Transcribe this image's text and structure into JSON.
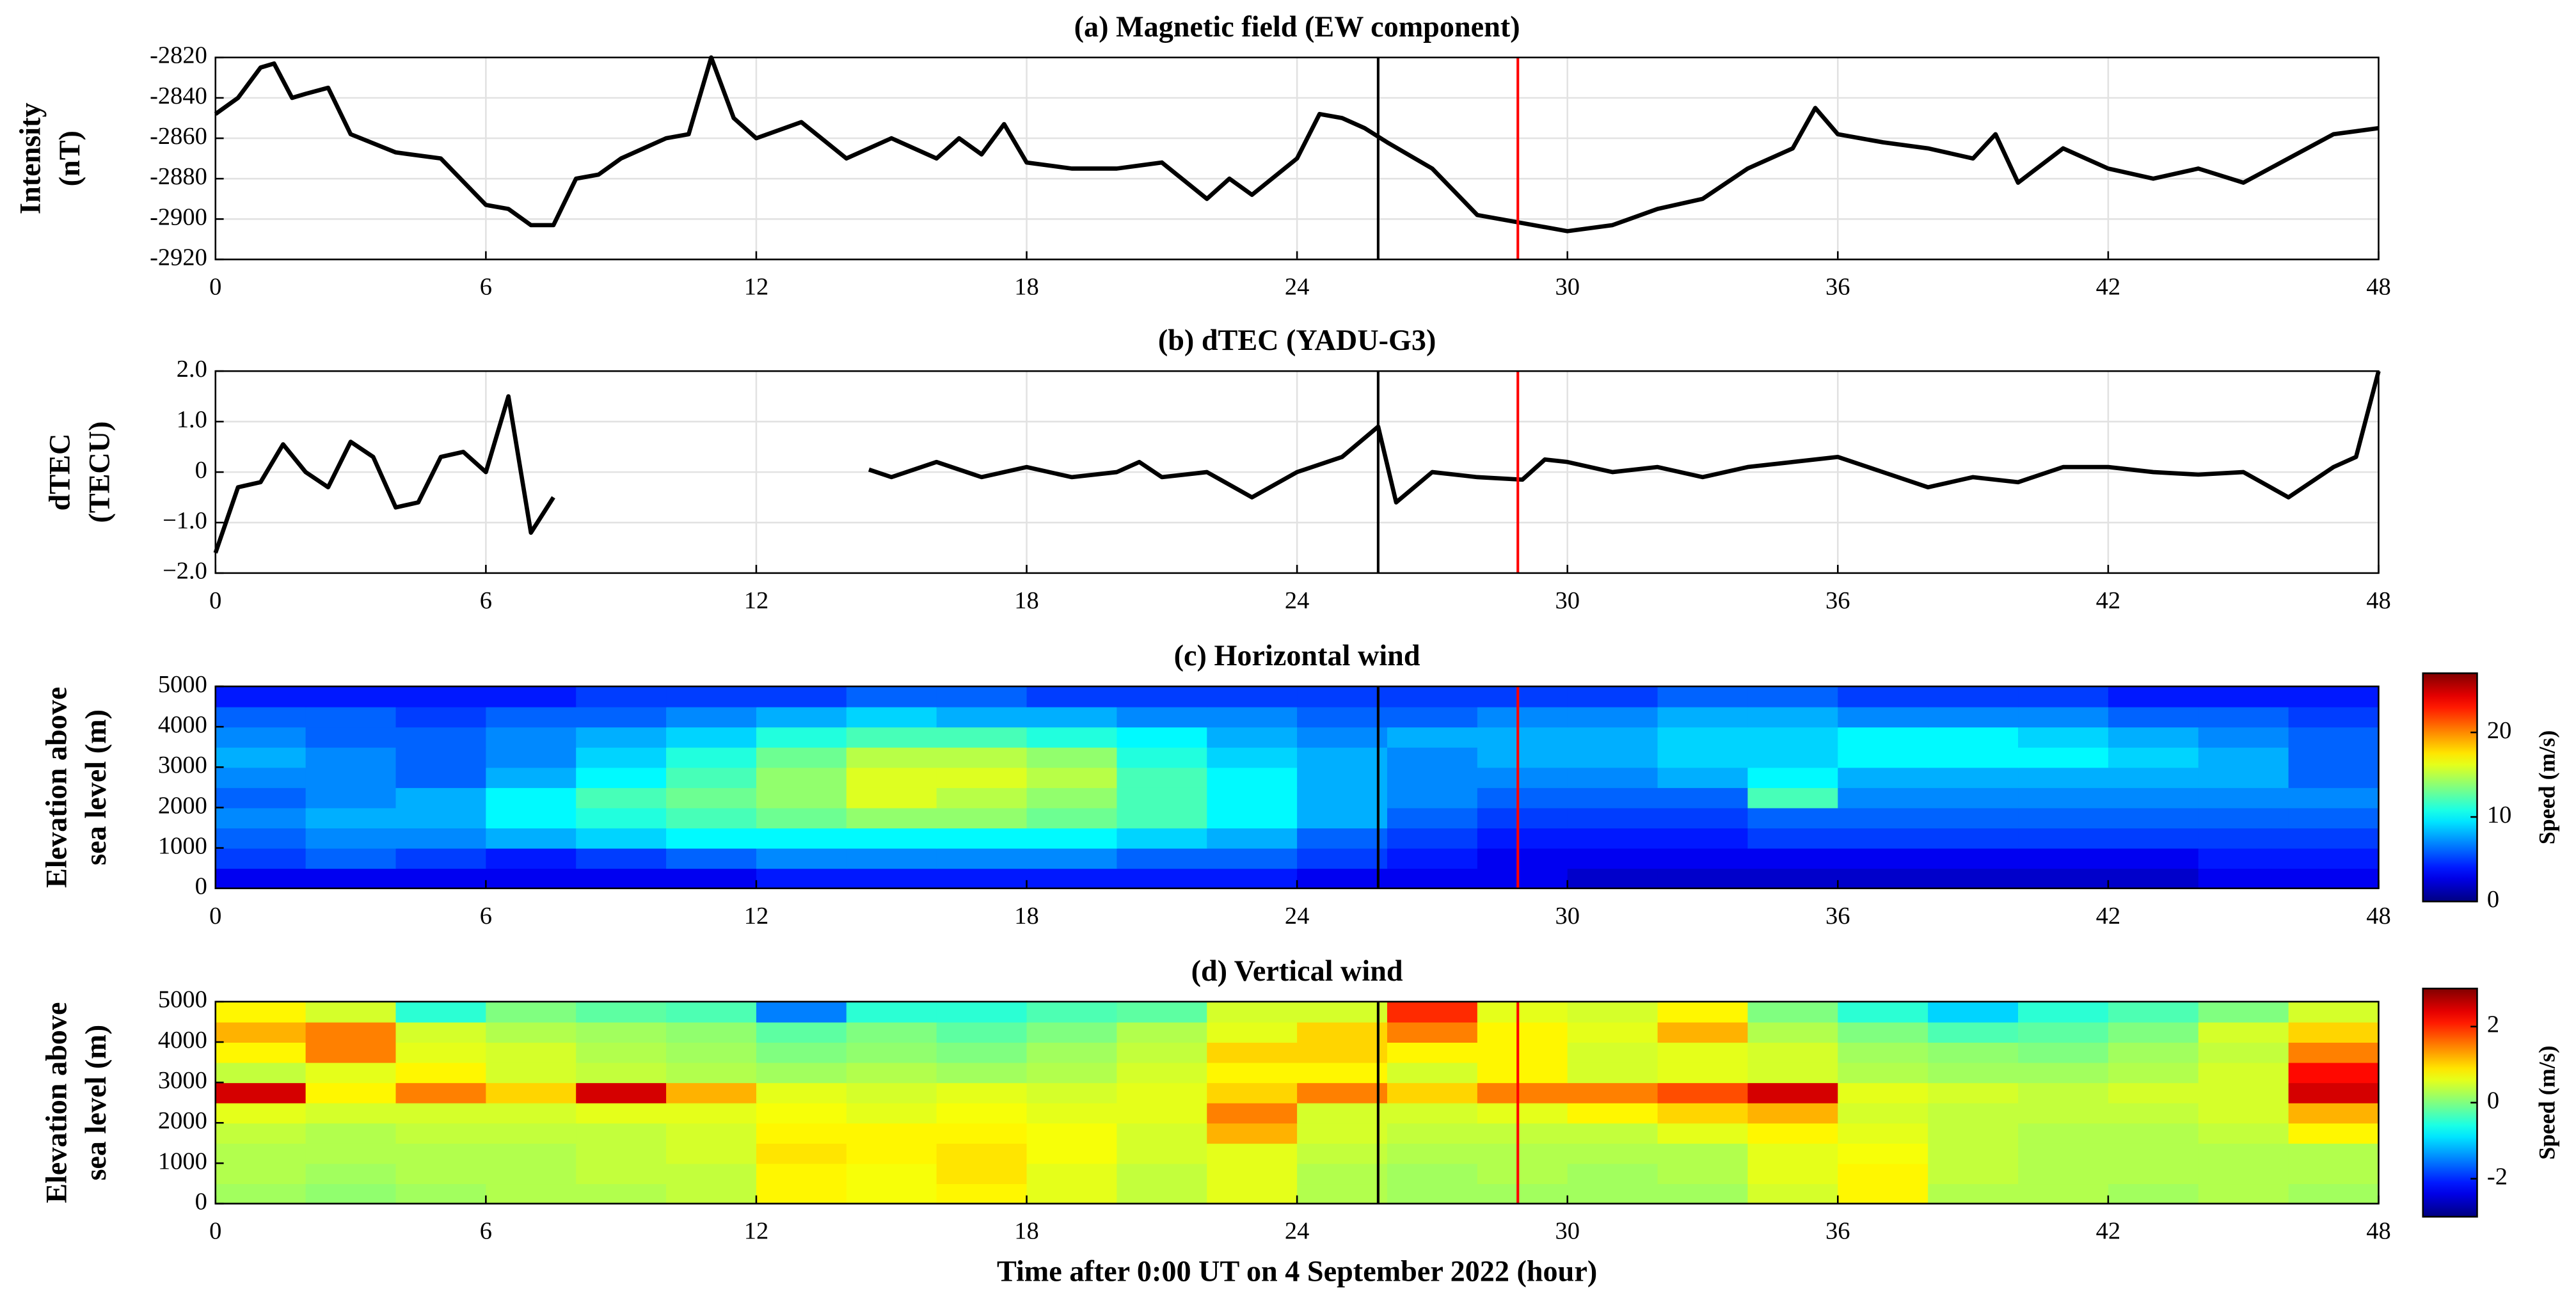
{
  "chart_data": [
    {
      "type": "line",
      "title": "(a) Magnetic field (EW component)",
      "ylabel": [
        "Intensity",
        "(nT)"
      ],
      "xlim": [
        0,
        48
      ],
      "xticks": [
        0,
        6,
        12,
        18,
        24,
        30,
        36,
        42,
        48
      ],
      "ylim": [
        -2920,
        -2820
      ],
      "yticks": [
        -2920,
        -2900,
        -2880,
        -2860,
        -2840,
        -2820
      ],
      "grid": true,
      "x": [
        0,
        0.5,
        1,
        1.3,
        1.7,
        2,
        2.5,
        3,
        4,
        5,
        6,
        6.5,
        7,
        7.5,
        8,
        8.5,
        9,
        10,
        10.5,
        11,
        11.5,
        12,
        13,
        14,
        15,
        16,
        16.5,
        17,
        17.5,
        18,
        19,
        20,
        21,
        22,
        22.5,
        23,
        24,
        24.5,
        25,
        25.5,
        26,
        27,
        28,
        29,
        30,
        31,
        32,
        33,
        34,
        35,
        35.5,
        36,
        37,
        38,
        39,
        39.5,
        40,
        41,
        42,
        43,
        44,
        45,
        46,
        47,
        48
      ],
      "series": [
        {
          "color": "#000000",
          "values": [
            -2848,
            -2840,
            -2825,
            -2823,
            -2840,
            -2838,
            -2835,
            -2858,
            -2867,
            -2870,
            -2893,
            -2895,
            -2903,
            -2903,
            -2880,
            -2878,
            -2870,
            -2860,
            -2858,
            -2820,
            -2850,
            -2860,
            -2852,
            -2870,
            -2860,
            -2870,
            -2860,
            -2868,
            -2853,
            -2872,
            -2875,
            -2875,
            -2872,
            -2890,
            -2880,
            -2888,
            -2870,
            -2848,
            -2850,
            -2855,
            -2862,
            -2875,
            -2898,
            -2902,
            -2906,
            -2903,
            -2895,
            -2890,
            -2875,
            -2865,
            -2845,
            -2858,
            -2862,
            -2865,
            -2870,
            -2858,
            -2882,
            -2865,
            -2875,
            -2880,
            -2875,
            -2882,
            -2870,
            -2858,
            -2855
          ]
        }
      ],
      "vlines": [
        {
          "x": 25.8,
          "color": "#000000"
        },
        {
          "x": 28.9,
          "color": "#ff0000"
        }
      ]
    },
    {
      "type": "line",
      "title": "(b) dTEC (YADU-G3)",
      "ylabel": [
        "dTEC",
        "(TECU)"
      ],
      "xlim": [
        0,
        48
      ],
      "xticks": [
        0,
        6,
        12,
        18,
        24,
        30,
        36,
        42,
        48
      ],
      "ylim": [
        -2,
        2
      ],
      "yticks": [
        {
          "value": -2,
          "label": "−2.0"
        },
        {
          "value": -1,
          "label": "−1.0"
        },
        0,
        {
          "value": 1,
          "label": "1.0"
        },
        {
          "value": 2,
          "label": "2.0"
        }
      ],
      "grid": true,
      "x": [
        0,
        0.5,
        1,
        1.5,
        2,
        2.5,
        3,
        3.5,
        4,
        4.5,
        5,
        5.5,
        6,
        6.5,
        7,
        7.5,
        10,
        14.5,
        15,
        16,
        17,
        18,
        19,
        20,
        20.5,
        21,
        22,
        23,
        24,
        25,
        25.8,
        26.2,
        27,
        28,
        29,
        29.5,
        30,
        31,
        32,
        33,
        34,
        35,
        36,
        37,
        38,
        39,
        40,
        41,
        42,
        43,
        44,
        45,
        46,
        47,
        47.5,
        48
      ],
      "series": [
        {
          "color": "#000000",
          "values": [
            -1.6,
            -0.3,
            -0.2,
            0.55,
            0.0,
            -0.3,
            0.6,
            0.3,
            -0.7,
            -0.6,
            0.3,
            0.4,
            0.0,
            1.5,
            -1.2,
            -0.5,
            null,
            0.05,
            -0.1,
            0.2,
            -0.1,
            0.1,
            -0.1,
            0.0,
            0.2,
            -0.1,
            0.0,
            -0.5,
            0.0,
            0.3,
            0.9,
            -0.6,
            0.0,
            -0.1,
            -0.15,
            0.25,
            0.2,
            0.0,
            0.1,
            -0.1,
            0.1,
            0.2,
            0.3,
            0.0,
            -0.3,
            -0.1,
            -0.2,
            0.1,
            0.1,
            0.0,
            -0.05,
            0.0,
            -0.5,
            0.1,
            0.3,
            2.0
          ]
        }
      ],
      "vlines": [
        {
          "x": 25.8,
          "color": "#000000"
        },
        {
          "x": 28.9,
          "color": "#ff0000"
        }
      ]
    },
    {
      "type": "heatmap",
      "title": "(c) Horizontal wind",
      "ylabel": [
        "Elevation above",
        "sea level (m)"
      ],
      "xlim": [
        0,
        48
      ],
      "xticks": [
        0,
        6,
        12,
        18,
        24,
        30,
        36,
        42,
        48
      ],
      "ylim": [
        0,
        5000
      ],
      "yticks": [
        0,
        1000,
        2000,
        3000,
        4000,
        5000
      ],
      "grid": false,
      "colormap": "jet",
      "colorbar": {
        "label": "Speed (m/s)",
        "clim": [
          0,
          27
        ],
        "ticks": [
          0,
          10,
          20
        ]
      },
      "xbins": [
        0,
        2,
        4,
        6,
        8,
        10,
        12,
        14,
        16,
        18,
        20,
        22,
        24,
        26,
        28,
        30,
        32,
        34,
        36,
        38,
        40,
        42,
        44,
        46,
        48
      ],
      "ybins": [
        0,
        500,
        1000,
        1500,
        2000,
        2500,
        3000,
        3500,
        4000,
        4500,
        5000
      ],
      "z": [
        [
          3,
          3,
          3,
          3,
          3,
          3,
          4,
          4,
          4,
          4,
          4,
          4,
          3,
          3,
          3,
          2,
          2,
          2,
          2,
          2,
          2,
          2,
          3,
          3
        ],
        [
          5,
          6,
          5,
          4,
          5,
          6,
          7,
          7,
          7,
          7,
          6,
          6,
          5,
          4,
          3,
          3,
          3,
          3,
          3,
          3,
          3,
          3,
          4,
          4
        ],
        [
          6,
          7,
          7,
          8,
          9,
          10,
          10,
          10,
          10,
          10,
          9,
          8,
          6,
          5,
          4,
          4,
          4,
          5,
          5,
          5,
          5,
          5,
          5,
          5
        ],
        [
          7,
          8,
          8,
          10,
          11,
          12,
          13,
          14,
          14,
          13,
          12,
          10,
          8,
          6,
          5,
          5,
          5,
          6,
          6,
          6,
          6,
          6,
          6,
          6
        ],
        [
          6,
          7,
          8,
          10,
          12,
          13,
          14,
          16,
          15,
          14,
          12,
          10,
          8,
          7,
          6,
          6,
          6,
          12,
          7,
          7,
          7,
          7,
          7,
          7
        ],
        [
          7,
          7,
          6,
          8,
          10,
          12,
          14,
          16,
          16,
          15,
          12,
          10,
          8,
          7,
          7,
          7,
          8,
          10,
          8,
          8,
          8,
          8,
          8,
          6
        ],
        [
          8,
          7,
          6,
          7,
          9,
          11,
          13,
          15,
          15,
          14,
          11,
          9,
          8,
          7,
          8,
          8,
          9,
          9,
          10,
          10,
          10,
          9,
          8,
          6
        ],
        [
          7,
          6,
          6,
          7,
          8,
          9,
          11,
          12,
          12,
          11,
          10,
          8,
          7,
          8,
          8,
          8,
          9,
          9,
          10,
          10,
          9,
          8,
          7,
          6
        ],
        [
          6,
          6,
          5,
          6,
          6,
          7,
          8,
          9,
          8,
          8,
          7,
          7,
          6,
          6,
          7,
          7,
          8,
          8,
          7,
          7,
          7,
          6,
          6,
          5
        ],
        [
          4,
          4,
          4,
          4,
          5,
          5,
          5,
          6,
          6,
          5,
          5,
          5,
          5,
          5,
          5,
          5,
          6,
          6,
          5,
          5,
          5,
          4,
          4,
          4
        ]
      ],
      "vlines": [
        {
          "x": 25.8,
          "color": "#000000"
        },
        {
          "x": 28.9,
          "color": "#ff0000"
        }
      ]
    },
    {
      "type": "heatmap",
      "title": "(d) Vertical wind",
      "ylabel": [
        "Elevation above",
        "sea level (m)"
      ],
      "xlabel": "Time after 0:00 UT on 4 September 2022 (hour)",
      "xlim": [
        0,
        48
      ],
      "xticks": [
        0,
        6,
        12,
        18,
        24,
        30,
        36,
        42,
        48
      ],
      "ylim": [
        0,
        5000
      ],
      "yticks": [
        0,
        1000,
        2000,
        3000,
        4000,
        5000
      ],
      "grid": false,
      "colormap": "jet",
      "colorbar": {
        "label": "Speed (m/s)",
        "clim": [
          -3,
          3
        ],
        "ticks": [
          -2,
          0,
          2
        ]
      },
      "xbins": [
        0,
        2,
        4,
        6,
        8,
        10,
        12,
        14,
        16,
        18,
        20,
        22,
        24,
        26,
        28,
        30,
        32,
        34,
        36,
        38,
        40,
        42,
        44,
        46,
        48
      ],
      "ybins": [
        0,
        500,
        1000,
        1500,
        2000,
        2500,
        3000,
        3500,
        4000,
        4500,
        5000
      ],
      "z": [
        [
          0.2,
          0.1,
          0.2,
          0.3,
          0.3,
          0.4,
          0.8,
          0.7,
          0.8,
          0.6,
          0.4,
          0.6,
          0.3,
          0.2,
          0.2,
          0.2,
          0.2,
          0.5,
          0.8,
          0.3,
          0.3,
          0.2,
          0.3,
          0.2
        ],
        [
          0.3,
          0.2,
          0.3,
          0.3,
          0.4,
          0.4,
          0.8,
          0.7,
          0.9,
          0.6,
          0.4,
          0.6,
          0.3,
          0.2,
          0.3,
          0.2,
          0.3,
          0.6,
          0.8,
          0.4,
          0.3,
          0.3,
          0.3,
          0.3
        ],
        [
          0.3,
          0.3,
          0.3,
          0.3,
          0.4,
          0.5,
          0.9,
          0.8,
          0.9,
          0.7,
          0.5,
          0.6,
          0.4,
          0.3,
          0.3,
          0.3,
          0.3,
          0.6,
          0.7,
          0.4,
          0.3,
          0.3,
          0.3,
          0.3
        ],
        [
          0.4,
          0.3,
          0.4,
          0.4,
          0.4,
          0.5,
          0.8,
          0.8,
          0.8,
          0.7,
          0.5,
          1.2,
          0.5,
          0.4,
          0.4,
          0.4,
          0.6,
          0.8,
          0.6,
          0.4,
          0.3,
          0.3,
          0.4,
          0.8
        ],
        [
          0.6,
          0.5,
          0.5,
          0.5,
          0.6,
          0.6,
          0.7,
          0.6,
          0.7,
          0.6,
          0.6,
          1.5,
          0.5,
          0.5,
          0.6,
          0.8,
          1.0,
          1.2,
          0.5,
          0.4,
          0.4,
          0.4,
          0.5,
          1.2
        ],
        [
          2.5,
          0.8,
          1.5,
          1.0,
          2.5,
          1.2,
          0.6,
          0.5,
          0.6,
          0.5,
          0.6,
          1.0,
          1.5,
          1.0,
          1.5,
          1.5,
          1.8,
          2.5,
          0.6,
          0.5,
          0.4,
          0.5,
          0.5,
          2.5
        ],
        [
          0.4,
          0.6,
          0.8,
          0.5,
          0.4,
          0.3,
          0.2,
          0.3,
          0.2,
          0.3,
          0.5,
          0.8,
          0.8,
          0.5,
          0.8,
          0.5,
          0.6,
          0.5,
          0.3,
          0.2,
          0.2,
          0.3,
          0.5,
          2.2
        ],
        [
          0.8,
          1.5,
          0.6,
          0.5,
          0.3,
          0.2,
          0.0,
          0.1,
          0.0,
          0.2,
          0.4,
          1.0,
          1.0,
          0.8,
          0.8,
          0.5,
          0.6,
          0.5,
          0.2,
          0.1,
          0.0,
          0.2,
          0.4,
          1.5
        ],
        [
          1.2,
          1.5,
          0.5,
          0.3,
          0.2,
          0.1,
          -0.2,
          0.0,
          -0.2,
          0.0,
          0.3,
          0.6,
          1.0,
          1.5,
          0.8,
          0.6,
          1.2,
          0.3,
          0.0,
          -0.3,
          -0.2,
          0.0,
          0.5,
          1.0
        ],
        [
          0.8,
          0.5,
          -0.5,
          0.0,
          -0.2,
          -0.3,
          -1.5,
          -0.5,
          -0.5,
          -0.3,
          -0.2,
          0.5,
          0.5,
          2.0,
          0.6,
          0.5,
          0.8,
          0.0,
          -0.5,
          -1.0,
          -0.5,
          -0.3,
          0.0,
          0.5
        ]
      ],
      "vlines": [
        {
          "x": 25.8,
          "color": "#000000"
        },
        {
          "x": 28.9,
          "color": "#ff0000"
        }
      ]
    }
  ]
}
